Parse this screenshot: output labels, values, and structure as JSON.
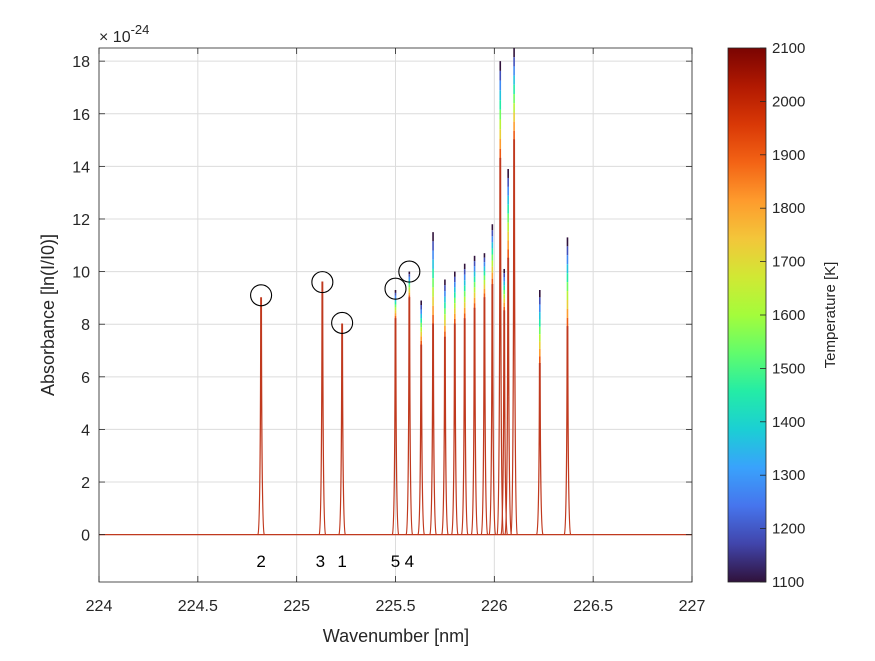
{
  "chart_data": {
    "type": "line",
    "title": "",
    "xlabel": "Wavenumber [nm]",
    "ylabel": "Absorbance [ln(I/I0)]",
    "y_exponent_label": "× 10",
    "y_exponent_power": "-24",
    "xlim": [
      224,
      227
    ],
    "ylim": [
      -1.8,
      18.5
    ],
    "xticks": [
      224,
      224.5,
      225,
      225.5,
      226,
      226.5,
      227
    ],
    "xtick_labels": [
      "224",
      "224.5",
      "225",
      "225.5",
      "226",
      "226.5",
      "227"
    ],
    "yticks": [
      0,
      2,
      4,
      6,
      8,
      10,
      12,
      14,
      16,
      18
    ],
    "ytick_labels": [
      "0",
      "2",
      "4",
      "6",
      "8",
      "10",
      "12",
      "14",
      "16",
      "18"
    ],
    "grid": true,
    "line_color": "#c0391e",
    "peaks": [
      {
        "x": 224.82,
        "y": 9.0,
        "ymax": 9.0
      },
      {
        "x": 225.13,
        "y": 9.6,
        "ymax": 9.6
      },
      {
        "x": 225.23,
        "y": 8.0,
        "ymax": 8.0
      },
      {
        "x": 225.5,
        "y": 8.2,
        "ymax": 9.3
      },
      {
        "x": 225.57,
        "y": 9.0,
        "ymax": 10.0
      },
      {
        "x": 225.63,
        "y": 7.2,
        "ymax": 8.9
      },
      {
        "x": 225.69,
        "y": 8.0,
        "ymax": 11.5
      },
      {
        "x": 225.75,
        "y": 7.5,
        "ymax": 9.7
      },
      {
        "x": 225.8,
        "y": 8.0,
        "ymax": 10.0
      },
      {
        "x": 225.85,
        "y": 8.2,
        "ymax": 10.3
      },
      {
        "x": 225.9,
        "y": 8.6,
        "ymax": 10.6
      },
      {
        "x": 225.95,
        "y": 9.0,
        "ymax": 10.7
      },
      {
        "x": 225.99,
        "y": 9.5,
        "ymax": 11.8
      },
      {
        "x": 226.03,
        "y": 14.3,
        "ymax": 18.0
      },
      {
        "x": 226.05,
        "y": 8.5,
        "ymax": 10.1
      },
      {
        "x": 226.07,
        "y": 10.5,
        "ymax": 13.9
      },
      {
        "x": 226.1,
        "y": 15.0,
        "ymax": 18.5
      },
      {
        "x": 226.23,
        "y": 6.5,
        "ymax": 9.3
      },
      {
        "x": 226.37,
        "y": 7.9,
        "ymax": 11.3
      }
    ],
    "circled_peaks": [
      {
        "x": 224.82,
        "y": 9.1
      },
      {
        "x": 225.13,
        "y": 9.6
      },
      {
        "x": 225.23,
        "y": 8.05
      },
      {
        "x": 225.5,
        "y": 9.35
      },
      {
        "x": 225.57,
        "y": 10.0
      }
    ],
    "peak_annotations": [
      {
        "text": "2",
        "x": 224.82
      },
      {
        "text": "3",
        "x": 225.12
      },
      {
        "text": "1",
        "x": 225.23
      },
      {
        "text": "5",
        "x": 225.5
      },
      {
        "text": "4",
        "x": 225.57
      }
    ],
    "annotation_y": -1.0,
    "colorbar": {
      "label": "Temperature [K]",
      "min": 1100,
      "max": 2100,
      "ticks": [
        1100,
        1200,
        1300,
        1400,
        1500,
        1600,
        1700,
        1800,
        1900,
        2000,
        2100
      ],
      "tick_labels": [
        "1100",
        "1200",
        "1300",
        "1400",
        "1500",
        "1600",
        "1700",
        "1800",
        "1900",
        "2000",
        "2100"
      ],
      "colormap_stops": [
        "#30123b",
        "#4145ab",
        "#4675ed",
        "#39a2fc",
        "#1bcfd4",
        "#24eca6",
        "#61fc6c",
        "#a4fc3b",
        "#d1e834",
        "#f3c63a",
        "#fe9b2d",
        "#f36315",
        "#d93806",
        "#b11901",
        "#7a0402"
      ]
    }
  }
}
